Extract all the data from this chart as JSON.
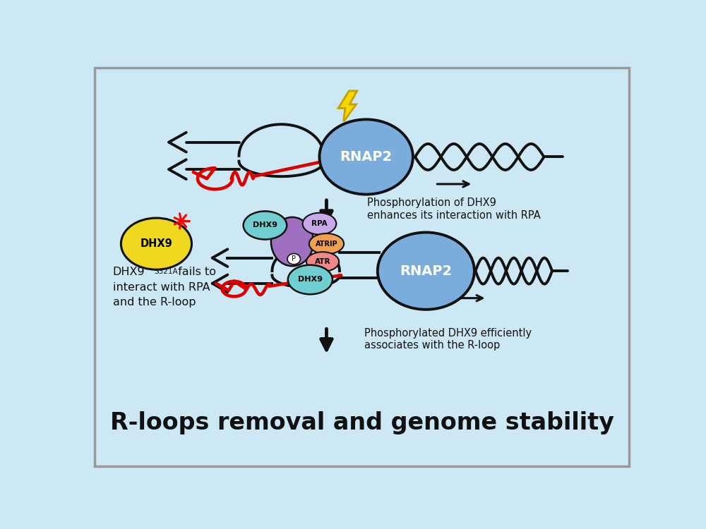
{
  "bg_color": "#cce8f4",
  "border_color": "#999999",
  "title": "R-loops removal and genome stability",
  "title_fontsize": 24,
  "dna_color": "#111111",
  "rna_color": "#dd0000",
  "rnap2_color": "#7aaddc",
  "rnap2_label_color": "white",
  "dhx9_teal_color": "#70cdd0",
  "dhx9_yellow_color": "#f0d820",
  "dhx9_purple_color": "#a070c0",
  "rpa_color": "#c8a8e8",
  "atrip_color": "#f0a050",
  "atr_color": "#f08888",
  "lightning_yellow": "#f5d800",
  "lightning_edge": "#c8a000",
  "text_color": "#111111",
  "annot1": "Phosphorylation of DHX9\nenhances its interaction with RPA",
  "annot2": "Phosphorylated DHX9 efficiently\nassociates with the R-loop"
}
